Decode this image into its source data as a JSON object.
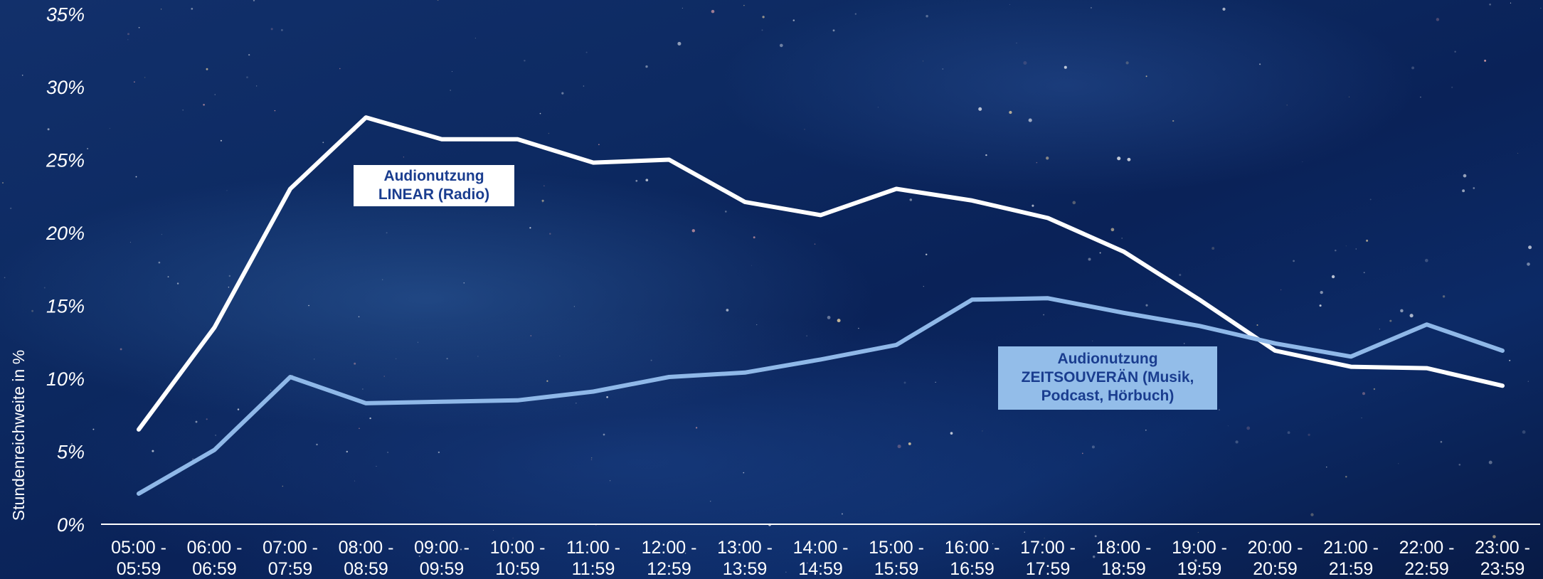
{
  "chart_data": {
    "type": "line",
    "ylabel": "Stundenreichweite in %",
    "xlabel": "",
    "ylim": [
      0,
      35
    ],
    "yticks": [
      0,
      5,
      10,
      15,
      20,
      25,
      30,
      35
    ],
    "ytick_labels": [
      "0%",
      "5%",
      "10%",
      "15%",
      "20%",
      "25%",
      "30%",
      "35%"
    ],
    "grid": false,
    "categories": [
      [
        "05:00 -",
        "05:59"
      ],
      [
        "06:00 -",
        "06:59"
      ],
      [
        "07:00 -",
        "07:59"
      ],
      [
        "08:00 -",
        "08:59"
      ],
      [
        "09:00 -",
        "09:59"
      ],
      [
        "10:00 -",
        "10:59"
      ],
      [
        "11:00 -",
        "11:59"
      ],
      [
        "12:00 -",
        "12:59"
      ],
      [
        "13:00 -",
        "13:59"
      ],
      [
        "14:00 -",
        "14:59"
      ],
      [
        "15:00 -",
        "15:59"
      ],
      [
        "16:00 -",
        "16:59"
      ],
      [
        "17:00 -",
        "17:59"
      ],
      [
        "18:00 -",
        "18:59"
      ],
      [
        "19:00 -",
        "19:59"
      ],
      [
        "20:00 -",
        "20:59"
      ],
      [
        "21:00 -",
        "21:59"
      ],
      [
        "22:00 -",
        "22:59"
      ],
      [
        "23:00 -",
        "23:59"
      ]
    ],
    "series": [
      {
        "color": "#ffffff",
        "values": [
          6.5,
          13.5,
          23,
          27.9,
          26.4,
          26.4,
          24.8,
          25,
          22.1,
          21.2,
          23,
          22.2,
          21,
          18.7,
          15.4,
          11.9,
          10.8,
          10.7,
          9.5
        ]
      },
      {
        "color": "#8fb8e8",
        "values": [
          2.1,
          5.1,
          10.1,
          8.3,
          8.4,
          8.5,
          9.1,
          10.1,
          10.4,
          11.3,
          12.3,
          15.4,
          15.5,
          14.5,
          13.6,
          12.4,
          11.5,
          13.7,
          11.9
        ]
      }
    ],
    "annotations": {
      "linear": [
        "Audionutzung",
        "LINEAR (Radio)"
      ],
      "zeit": [
        "Audionutzung",
        "ZEITSOUVERÄN (Musik,",
        "Podcast, Hörbuch)"
      ]
    }
  }
}
